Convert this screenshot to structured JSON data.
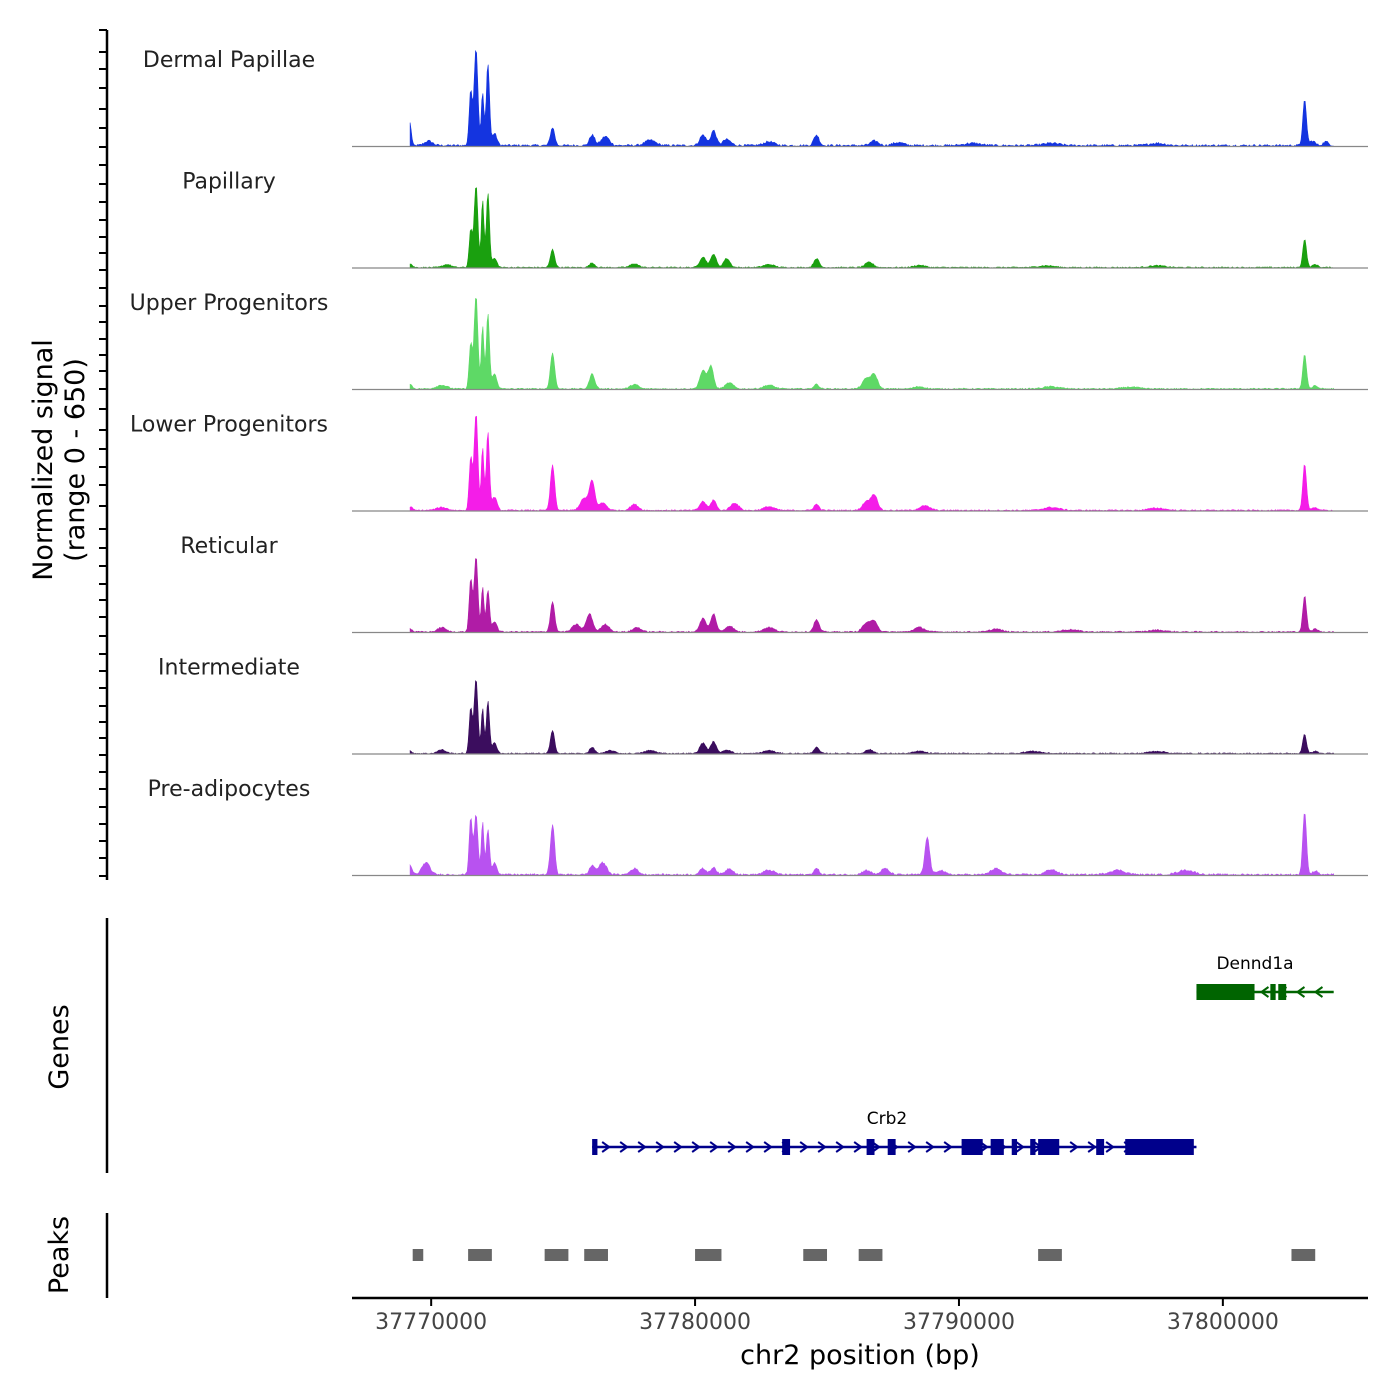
{
  "chart_data": {
    "type": "area",
    "xlabel": "chr2 position (bp)",
    "ylabel_line1": "Normalized signal",
    "ylabel_line2": "(range 0 - 650)",
    "genes_label": "Genes",
    "peaks_label": "Peaks",
    "xlim": [
      37767000,
      37805500
    ],
    "ylim": [
      0,
      650
    ],
    "x_ticks": [
      37770000,
      37780000,
      37790000,
      37800000
    ],
    "x_tick_labels": [
      "37770000",
      "37780000",
      "37790000",
      "37800000"
    ],
    "series": [
      {
        "name": "Dermal Papillae",
        "color": "#1434e0",
        "peaks": [
          [
            37769200,
            150,
            50
          ],
          [
            37769900,
            30,
            150
          ],
          [
            37771500,
            360,
            60
          ],
          [
            37771700,
            650,
            70
          ],
          [
            37771950,
            350,
            50
          ],
          [
            37772150,
            550,
            60
          ],
          [
            37772400,
            80,
            90
          ],
          [
            37774600,
            120,
            80
          ],
          [
            37776100,
            70,
            100
          ],
          [
            37776600,
            60,
            150
          ],
          [
            37778300,
            35,
            200
          ],
          [
            37780300,
            70,
            120
          ],
          [
            37780700,
            100,
            100
          ],
          [
            37781200,
            40,
            150
          ],
          [
            37782800,
            25,
            200
          ],
          [
            37784600,
            70,
            100
          ],
          [
            37786800,
            30,
            150
          ],
          [
            37787700,
            20,
            200
          ],
          [
            37790500,
            15,
            300
          ],
          [
            37793500,
            15,
            300
          ],
          [
            37797500,
            15,
            300
          ],
          [
            37803100,
            300,
            70
          ],
          [
            37803400,
            30,
            100
          ],
          [
            37803900,
            25,
            100
          ]
        ],
        "noise": 14
      },
      {
        "name": "Papillary",
        "color": "#1aa00f",
        "peaks": [
          [
            37769200,
            25,
            80
          ],
          [
            37770600,
            20,
            150
          ],
          [
            37771500,
            250,
            60
          ],
          [
            37771700,
            550,
            70
          ],
          [
            37771950,
            450,
            50
          ],
          [
            37772150,
            500,
            60
          ],
          [
            37772400,
            60,
            90
          ],
          [
            37774600,
            120,
            80
          ],
          [
            37776100,
            30,
            100
          ],
          [
            37777700,
            25,
            150
          ],
          [
            37780300,
            70,
            120
          ],
          [
            37780700,
            90,
            100
          ],
          [
            37781200,
            60,
            120
          ],
          [
            37782800,
            20,
            200
          ],
          [
            37784600,
            60,
            100
          ],
          [
            37786600,
            35,
            150
          ],
          [
            37788500,
            15,
            200
          ],
          [
            37793300,
            12,
            300
          ],
          [
            37797500,
            12,
            300
          ],
          [
            37803100,
            190,
            70
          ],
          [
            37803500,
            20,
            100
          ]
        ],
        "noise": 8
      },
      {
        "name": "Upper Progenitors",
        "color": "#5ed966",
        "peaks": [
          [
            37769200,
            30,
            80
          ],
          [
            37770400,
            25,
            200
          ],
          [
            37771500,
            300,
            60
          ],
          [
            37771700,
            620,
            70
          ],
          [
            37771950,
            420,
            50
          ],
          [
            37772150,
            500,
            60
          ],
          [
            37772400,
            100,
            90
          ],
          [
            37774600,
            240,
            80
          ],
          [
            37776100,
            100,
            100
          ],
          [
            37777700,
            30,
            150
          ],
          [
            37780300,
            120,
            120
          ],
          [
            37780600,
            150,
            100
          ],
          [
            37781300,
            40,
            150
          ],
          [
            37782800,
            25,
            200
          ],
          [
            37784600,
            30,
            100
          ],
          [
            37786500,
            70,
            150
          ],
          [
            37786800,
            90,
            120
          ],
          [
            37788500,
            15,
            200
          ],
          [
            37793500,
            15,
            300
          ],
          [
            37796500,
            12,
            300
          ],
          [
            37803100,
            230,
            70
          ],
          [
            37803500,
            20,
            100
          ]
        ],
        "noise": 9
      },
      {
        "name": "Lower Progenitors",
        "color": "#f41de8",
        "peaks": [
          [
            37769200,
            25,
            80
          ],
          [
            37770400,
            20,
            200
          ],
          [
            37771500,
            350,
            60
          ],
          [
            37771700,
            650,
            70
          ],
          [
            37771950,
            420,
            50
          ],
          [
            37772150,
            520,
            60
          ],
          [
            37772400,
            90,
            90
          ],
          [
            37774600,
            300,
            80
          ],
          [
            37775800,
            80,
            150
          ],
          [
            37776100,
            190,
            100
          ],
          [
            37776500,
            50,
            150
          ],
          [
            37777700,
            40,
            150
          ],
          [
            37780300,
            60,
            120
          ],
          [
            37780700,
            70,
            100
          ],
          [
            37781500,
            50,
            150
          ],
          [
            37782800,
            25,
            200
          ],
          [
            37784600,
            40,
            100
          ],
          [
            37786500,
            60,
            150
          ],
          [
            37786800,
            100,
            120
          ],
          [
            37788700,
            30,
            200
          ],
          [
            37793500,
            20,
            300
          ],
          [
            37797500,
            15,
            300
          ],
          [
            37803100,
            310,
            70
          ],
          [
            37803500,
            20,
            100
          ]
        ],
        "noise": 9
      },
      {
        "name": "Reticular",
        "color": "#b01ca6",
        "peaks": [
          [
            37769200,
            20,
            80
          ],
          [
            37770400,
            30,
            150
          ],
          [
            37771500,
            350,
            60
          ],
          [
            37771700,
            500,
            70
          ],
          [
            37771950,
            300,
            50
          ],
          [
            37772150,
            280,
            60
          ],
          [
            37772400,
            70,
            90
          ],
          [
            37774600,
            200,
            80
          ],
          [
            37775500,
            50,
            150
          ],
          [
            37776000,
            120,
            120
          ],
          [
            37776600,
            50,
            150
          ],
          [
            37777800,
            30,
            150
          ],
          [
            37780300,
            90,
            120
          ],
          [
            37780700,
            120,
            100
          ],
          [
            37781300,
            40,
            150
          ],
          [
            37782800,
            30,
            200
          ],
          [
            37784600,
            80,
            100
          ],
          [
            37786500,
            60,
            150
          ],
          [
            37786800,
            70,
            120
          ],
          [
            37788500,
            30,
            200
          ],
          [
            37791400,
            20,
            200
          ],
          [
            37794200,
            15,
            300
          ],
          [
            37797500,
            12,
            300
          ],
          [
            37803100,
            240,
            70
          ],
          [
            37803500,
            20,
            100
          ]
        ],
        "noise": 9
      },
      {
        "name": "Intermediate",
        "color": "#3b0d5e",
        "peaks": [
          [
            37769200,
            15,
            80
          ],
          [
            37770400,
            25,
            150
          ],
          [
            37771500,
            300,
            60
          ],
          [
            37771700,
            500,
            70
          ],
          [
            37771950,
            300,
            50
          ],
          [
            37772150,
            350,
            60
          ],
          [
            37772400,
            70,
            90
          ],
          [
            37774600,
            150,
            80
          ],
          [
            37776100,
            40,
            100
          ],
          [
            37776800,
            20,
            150
          ],
          [
            37778300,
            20,
            200
          ],
          [
            37780300,
            70,
            120
          ],
          [
            37780700,
            80,
            100
          ],
          [
            37781200,
            25,
            150
          ],
          [
            37782800,
            20,
            200
          ],
          [
            37784600,
            40,
            100
          ],
          [
            37786600,
            25,
            150
          ],
          [
            37788500,
            15,
            200
          ],
          [
            37792800,
            15,
            300
          ],
          [
            37797500,
            15,
            300
          ],
          [
            37803100,
            130,
            70
          ],
          [
            37803500,
            15,
            100
          ]
        ],
        "noise": 8
      },
      {
        "name": "Pre-adipocytes",
        "color": "#b852f0",
        "peaks": [
          [
            37769200,
            60,
            80
          ],
          [
            37769800,
            80,
            150
          ],
          [
            37771500,
            380,
            60
          ],
          [
            37771700,
            400,
            70
          ],
          [
            37771950,
            350,
            50
          ],
          [
            37772150,
            300,
            60
          ],
          [
            37772400,
            80,
            90
          ],
          [
            37774600,
            330,
            80
          ],
          [
            37776100,
            60,
            100
          ],
          [
            37776500,
            80,
            150
          ],
          [
            37777700,
            40,
            150
          ],
          [
            37780300,
            40,
            120
          ],
          [
            37780700,
            50,
            100
          ],
          [
            37781300,
            40,
            150
          ],
          [
            37782800,
            30,
            200
          ],
          [
            37784600,
            40,
            100
          ],
          [
            37786500,
            30,
            150
          ],
          [
            37787200,
            40,
            150
          ],
          [
            37788800,
            250,
            90
          ],
          [
            37789300,
            30,
            150
          ],
          [
            37791400,
            40,
            200
          ],
          [
            37793500,
            35,
            200
          ],
          [
            37796000,
            30,
            300
          ],
          [
            37798600,
            30,
            300
          ],
          [
            37803100,
            420,
            70
          ],
          [
            37803500,
            25,
            100
          ]
        ],
        "noise": 12
      }
    ],
    "genes": [
      {
        "name": "Crb2",
        "color": "#00008b",
        "strand": "+",
        "start": 37776100,
        "end": 37799000,
        "exons": [
          [
            37776100,
            37776300
          ],
          [
            37783300,
            37783600
          ],
          [
            37786500,
            37786800
          ],
          [
            37787300,
            37787600
          ],
          [
            37790100,
            37790900
          ],
          [
            37791200,
            37791700
          ],
          [
            37792000,
            37792200
          ],
          [
            37792700,
            37792900
          ],
          [
            37793000,
            37793800
          ],
          [
            37795200,
            37795500
          ],
          [
            37796300,
            37798900
          ]
        ]
      },
      {
        "name": "Dennd1a",
        "color": "#006400",
        "strand": "-",
        "start": 37799000,
        "end": 37804200,
        "exons": [
          [
            37799000,
            37801200
          ],
          [
            37801800,
            37802000
          ],
          [
            37802100,
            37802400
          ]
        ]
      }
    ],
    "peaks": [
      [
        37769300,
        37769700
      ],
      [
        37771400,
        37772300
      ],
      [
        37774300,
        37775200
      ],
      [
        37775800,
        37776700
      ],
      [
        37780000,
        37781000
      ],
      [
        37784100,
        37785000
      ],
      [
        37786200,
        37787100
      ],
      [
        37793000,
        37793900
      ],
      [
        37802600,
        37803500
      ]
    ]
  }
}
